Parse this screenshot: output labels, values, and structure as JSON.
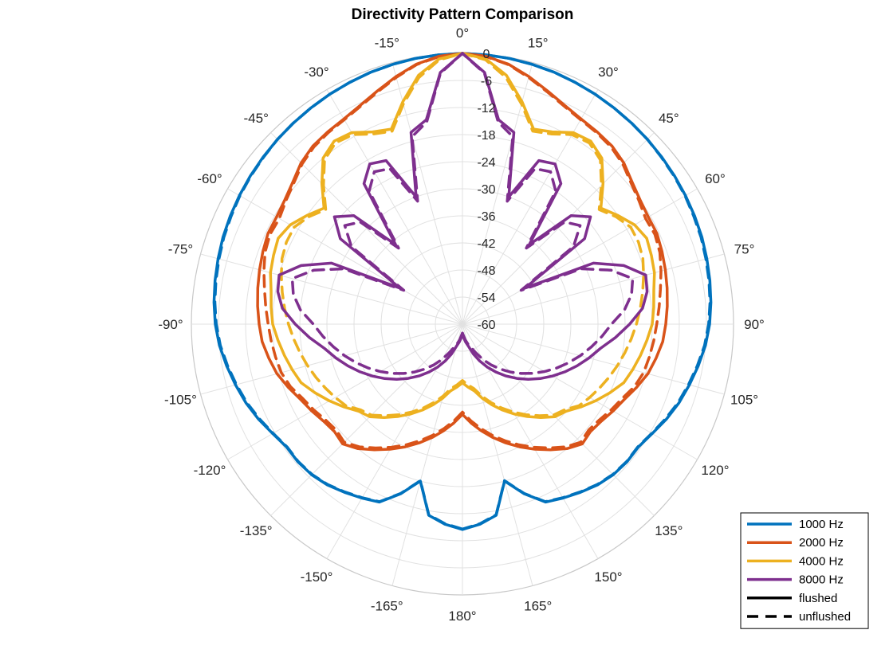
{
  "chart_data": {
    "type": "polar-line",
    "title": "Directivity Pattern Comparison",
    "theta_zero": "top",
    "theta_direction": "clockwise",
    "theta_ticks": [
      0,
      15,
      30,
      45,
      60,
      75,
      90,
      105,
      120,
      135,
      150,
      165,
      180,
      -165,
      -150,
      -135,
      -120,
      -105,
      -90,
      -75,
      -60,
      -45,
      -30,
      -15
    ],
    "theta_tick_labels": [
      "0°",
      "15°",
      "30°",
      "45°",
      "60°",
      "75°",
      "90°",
      "105°",
      "120°",
      "135°",
      "150°",
      "165°",
      "180°",
      "-165°",
      "-150°",
      "-135°",
      "-120°",
      "-105°",
      "-90°",
      "-75°",
      "-60°",
      "-45°",
      "-30°",
      "-15°"
    ],
    "r_lim": [
      -60,
      0
    ],
    "r_ticks": [
      0,
      -6,
      -12,
      -18,
      -24,
      -30,
      -36,
      -42,
      -48,
      -54,
      -60
    ],
    "r_tick_labels": [
      "0",
      "-6",
      "-12",
      "-18",
      "-24",
      "-30",
      "-36",
      "-42",
      "-48",
      "-54",
      "-60"
    ],
    "grid": true,
    "legend_position": "bottom-right",
    "angles_deg": [
      0,
      5,
      10,
      15,
      20,
      25,
      30,
      35,
      40,
      45,
      50,
      55,
      60,
      65,
      70,
      75,
      80,
      85,
      90,
      95,
      100,
      105,
      110,
      115,
      120,
      125,
      130,
      135,
      140,
      145,
      150,
      155,
      160,
      165,
      170,
      175,
      180
    ],
    "series": [
      {
        "name": "1000 Hz",
        "color": "#0072BD",
        "style": "flushed",
        "values": [
          0,
          -0.1,
          -0.2,
          -0.4,
          -0.6,
          -0.9,
          -1.2,
          -1.5,
          -1.8,
          -2.1,
          -2.4,
          -2.7,
          -3.0,
          -3.3,
          -3.6,
          -4.0,
          -4.4,
          -4.8,
          -5.3,
          -6.0,
          -7.0,
          -8.0,
          -9.0,
          -10.2,
          -11.5,
          -12.5,
          -12.5,
          -12.8,
          -13.5,
          -14.5,
          -15.5,
          -16.5,
          -20.0,
          -24.0,
          -17.0,
          -15.5,
          -14.5
        ]
      },
      {
        "name": "1000 Hz",
        "color": "#0072BD",
        "style": "unflushed",
        "values": [
          0,
          -0.1,
          -0.2,
          -0.4,
          -0.6,
          -0.9,
          -1.2,
          -1.5,
          -1.8,
          -2.1,
          -2.5,
          -2.8,
          -3.1,
          -3.5,
          -3.8,
          -4.2,
          -4.6,
          -5.0,
          -5.5,
          -6.2,
          -7.2,
          -8.2,
          -9.2,
          -10.4,
          -11.6,
          -12.6,
          -12.6,
          -12.9,
          -13.6,
          -14.6,
          -15.6,
          -16.6,
          -20.1,
          -24.1,
          -17.1,
          -15.6,
          -14.6
        ]
      },
      {
        "name": "2000 Hz",
        "color": "#D95319",
        "style": "flushed",
        "values": [
          0,
          -0.4,
          -1.5,
          -3.2,
          -5.0,
          -6.5,
          -7.5,
          -8.0,
          -8.5,
          -9.5,
          -11.0,
          -12.0,
          -12.5,
          -12.5,
          -13.0,
          -13.5,
          -14.0,
          -14.5,
          -15.0,
          -15.5,
          -16.5,
          -17.5,
          -19.0,
          -20.5,
          -21.5,
          -22.5,
          -23.0,
          -22.5,
          -24.0,
          -26.0,
          -28.0,
          -30.0,
          -32.0,
          -34.0,
          -36.0,
          -38.0,
          -40.0
        ]
      },
      {
        "name": "2000 Hz",
        "color": "#D95319",
        "style": "unflushed",
        "values": [
          0,
          -0.5,
          -1.6,
          -3.4,
          -5.2,
          -6.7,
          -7.7,
          -8.2,
          -8.8,
          -9.8,
          -11.3,
          -12.3,
          -13.2,
          -13.0,
          -13.5,
          -14.5,
          -15.5,
          -16.3,
          -17.0,
          -17.5,
          -18.0,
          -18.5,
          -19.5,
          -21.0,
          -22.0,
          -23.0,
          -23.5,
          -23.0,
          -24.5,
          -26.5,
          -28.5,
          -30.5,
          -32.5,
          -34.5,
          -36.5,
          -38.5,
          -40.5
        ]
      },
      {
        "name": "4000 Hz",
        "color": "#EDB120",
        "style": "flushed",
        "values": [
          0,
          -1.0,
          -4.0,
          -9.0,
          -14.0,
          -13.0,
          -11.0,
          -10.5,
          -12.0,
          -16.0,
          -20.0,
          -18.0,
          -16.0,
          -15.0,
          -15.5,
          -16.0,
          -17.0,
          -17.5,
          -18.0,
          -19.0,
          -20.0,
          -21.0,
          -22.0,
          -24.0,
          -26.0,
          -28.0,
          -30.0,
          -31.0,
          -33.0,
          -35.0,
          -37.0,
          -39.0,
          -41.0,
          -43.0,
          -45.0,
          -46.0,
          -47.0
        ]
      },
      {
        "name": "4000 Hz",
        "color": "#EDB120",
        "style": "unflushed",
        "values": [
          0,
          -1.2,
          -4.5,
          -9.5,
          -14.5,
          -13.5,
          -11.5,
          -11.0,
          -12.5,
          -16.5,
          -20.5,
          -18.5,
          -17.0,
          -17.0,
          -17.5,
          -18.5,
          -19.5,
          -20.5,
          -21.5,
          -22.5,
          -23.5,
          -24.5,
          -25.5,
          -26.5,
          -27.5,
          -28.5,
          -30.5,
          -31.5,
          -33.5,
          -35.5,
          -37.5,
          -39.5,
          -41.5,
          -43.5,
          -45.5,
          -46.5,
          -47.5
        ]
      },
      {
        "name": "8000 Hz",
        "color": "#7E2F8E",
        "style": "flushed",
        "values": [
          0,
          -4.0,
          -14.0,
          -16.0,
          -30.0,
          -20.0,
          -19.0,
          -22.0,
          -37.0,
          -26.0,
          -23.0,
          -27.0,
          -44.0,
          -28.0,
          -22.0,
          -18.0,
          -18.5,
          -20.0,
          -23.0,
          -26.0,
          -29.0,
          -31.0,
          -33.0,
          -35.0,
          -37.0,
          -39.0,
          -41.0,
          -43.0,
          -45.0,
          -47.0,
          -49.0,
          -51.0,
          -53.0,
          -55.0,
          -56.0,
          -57.0,
          -58.0
        ]
      },
      {
        "name": "8000 Hz",
        "color": "#7E2F8E",
        "style": "unflushed",
        "values": [
          0,
          -4.2,
          -14.5,
          -17.0,
          -31.0,
          -22.0,
          -21.0,
          -24.0,
          -38.0,
          -28.0,
          -26.0,
          -30.0,
          -45.0,
          -31.0,
          -25.0,
          -21.0,
          -22.0,
          -24.0,
          -27.0,
          -29.0,
          -31.0,
          -33.0,
          -35.0,
          -37.0,
          -39.0,
          -41.0,
          -43.0,
          -45.0,
          -47.0,
          -49.0,
          -51.0,
          -53.0,
          -54.5,
          -55.5,
          -56.5,
          -57.5,
          -58.0
        ]
      }
    ],
    "legend": [
      {
        "label": "1000 Hz",
        "color": "#0072BD",
        "dash": "solid"
      },
      {
        "label": "2000 Hz",
        "color": "#D95319",
        "dash": "solid"
      },
      {
        "label": "4000 Hz",
        "color": "#EDB120",
        "dash": "solid"
      },
      {
        "label": "8000 Hz",
        "color": "#7E2F8E",
        "dash": "solid"
      },
      {
        "label": "flushed",
        "color": "#000000",
        "dash": "solid"
      },
      {
        "label": "unflushed",
        "color": "#000000",
        "dash": "dashed"
      }
    ]
  }
}
